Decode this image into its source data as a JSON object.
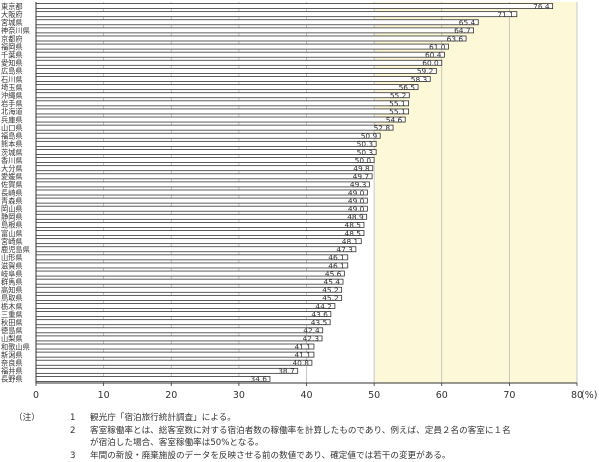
{
  "chart_data": {
    "type": "bar",
    "orientation": "horizontal",
    "title": "",
    "xlabel": "",
    "ylabel": "",
    "unit_label": "(%)",
    "xlim": [
      0,
      80
    ],
    "x_ticks": [
      "0",
      "10",
      "20",
      "30",
      "40",
      "50",
      "60",
      "70",
      "80"
    ],
    "grid": true,
    "categories": [
      "東京都",
      "大阪府",
      "宮城県",
      "神奈川県",
      "京都府",
      "福岡県",
      "千葉県",
      "愛知県",
      "広島県",
      "石川県",
      "埼玉県",
      "沖縄県",
      "岩手県",
      "北海道",
      "兵庫県",
      "山口県",
      "福島県",
      "熊本県",
      "茨城県",
      "香川県",
      "大分県",
      "愛媛県",
      "佐賀県",
      "長崎県",
      "青森県",
      "岡山県",
      "静岡県",
      "島根県",
      "富山県",
      "宮崎県",
      "鹿児島県",
      "山形県",
      "滋賀県",
      "岐阜県",
      "群馬県",
      "高知県",
      "鳥取県",
      "栃木県",
      "三重県",
      "秋田県",
      "徳島県",
      "山梨県",
      "和歌山県",
      "新潟県",
      "奈良県",
      "福井県",
      "長野県"
    ],
    "values": [
      76.4,
      71.1,
      65.4,
      64.7,
      63.6,
      61.0,
      60.4,
      60.0,
      59.2,
      58.3,
      56.5,
      55.2,
      55.1,
      55.1,
      54.6,
      52.8,
      50.9,
      50.3,
      50.3,
      50.0,
      49.8,
      49.7,
      49.3,
      49.0,
      49.0,
      49.0,
      48.9,
      48.5,
      48.5,
      48.1,
      47.3,
      46.1,
      46.1,
      45.6,
      45.4,
      45.2,
      45.2,
      44.2,
      43.6,
      43.5,
      42.4,
      42.3,
      41.1,
      41.1,
      40.8,
      38.7,
      34.6
    ],
    "value_labels": [
      "76.4",
      "71.1",
      "65.4",
      "64.7",
      "63.6",
      "61.0",
      "60.4",
      "60.0",
      "59.2",
      "58.3",
      "56.5",
      "55.2",
      "55.1",
      "55.1",
      "54.6",
      "52.8",
      "50.9",
      "50.3",
      "50.3",
      "50.0",
      "49.8",
      "49.7",
      "49.3",
      "49.0",
      "49.0",
      "49.0",
      "48.9",
      "48.5",
      "48.5",
      "48.1",
      "47.3",
      "46.1",
      "46.1",
      "45.6",
      "45.4",
      "45.2",
      "45.2",
      "44.2",
      "43.6",
      "43.5",
      "42.4",
      "42.3",
      "41.1",
      "41.1",
      "40.8",
      "38.7",
      "34.6"
    ]
  },
  "colors": {
    "bar_fill": "#ffffff",
    "bar_stroke": "#333333",
    "highlight_band": "#fdf8d8",
    "grid": "#bbbbbb",
    "text": "#333333"
  },
  "notes": {
    "tag": "（注）",
    "items": [
      {
        "num": "1",
        "lines": [
          "観光庁「宿泊旅行統計調査」による。"
        ]
      },
      {
        "num": "2",
        "lines": [
          "客室稼働率とは、総客室数に対する宿泊者数の稼働率を計算したものであり、例えば、定員２名の客室に１名",
          "が宿泊した場合、客室稼働率は50%となる。"
        ]
      },
      {
        "num": "3",
        "lines": [
          "年間の新設・廃棄施設のデータを反映させる前の数値であり、確定値では若干の変更がある。"
        ]
      }
    ]
  }
}
